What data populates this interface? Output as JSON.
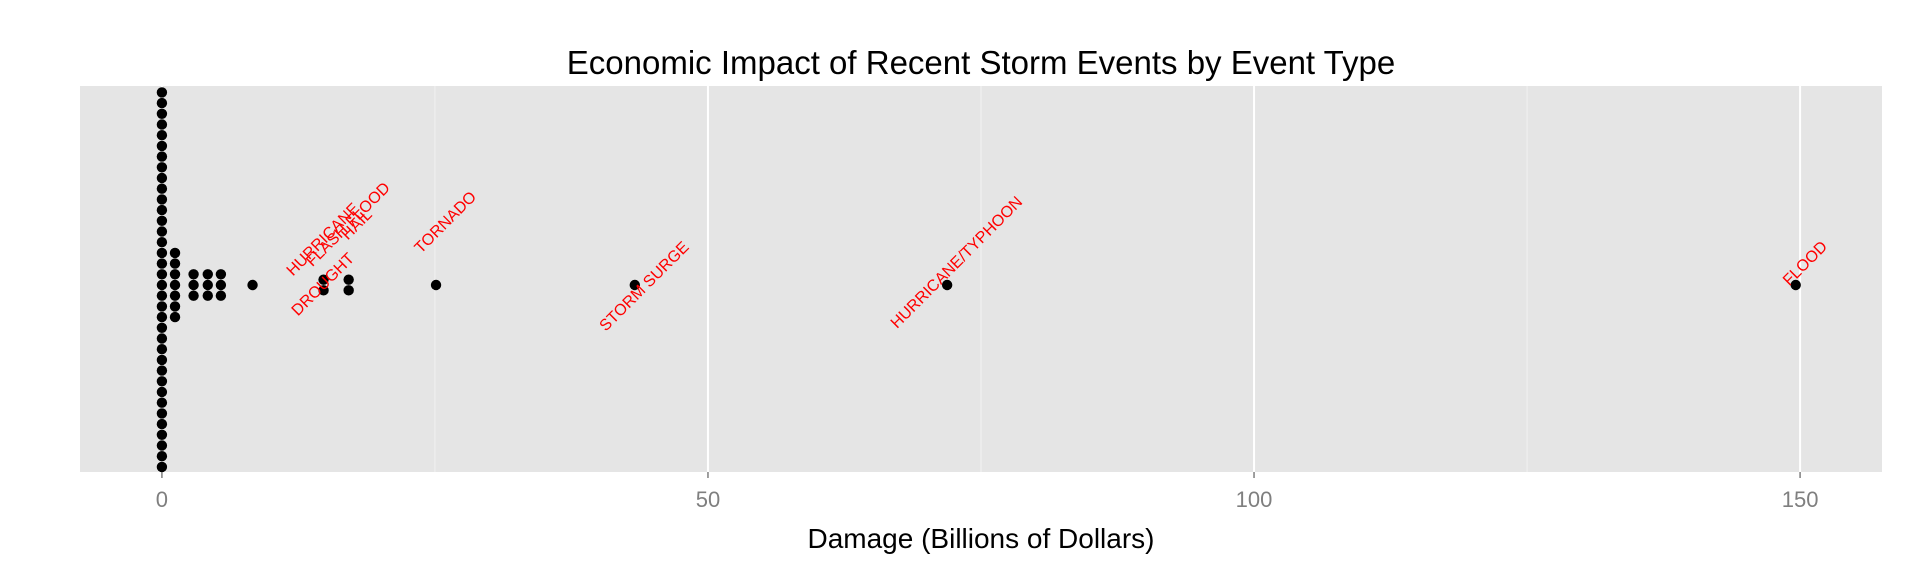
{
  "chart_data": {
    "type": "dotplot",
    "title": "Economic Impact of Recent Storm Events by Event Type",
    "xlabel": "Damage (Billions of Dollars)",
    "ylabel": "",
    "xlim": [
      -7.5,
      157.5
    ],
    "x_ticks": [
      0,
      50,
      100,
      150
    ],
    "x_tick_labels": [
      "0",
      "50",
      "100",
      "150"
    ],
    "grid": true,
    "colors": {
      "panel": "#e5e5e5",
      "grid": "#ffffff",
      "dots": "#000000",
      "annotations": "#ff0000",
      "ticks": "#7f7f7f",
      "text": "#000000"
    },
    "dot_bins": [
      {
        "x": 0.0,
        "count": 71
      },
      {
        "x": 1.2,
        "count": 7
      },
      {
        "x": 2.9,
        "count": 3
      },
      {
        "x": 4.2,
        "count": 3
      },
      {
        "x": 5.4,
        "count": 3
      },
      {
        "x": 8.3,
        "count": 1
      },
      {
        "x": 14.8,
        "count": 2
      },
      {
        "x": 17.1,
        "count": 2
      },
      {
        "x": 25.1,
        "count": 1
      },
      {
        "x": 43.3,
        "count": 1
      },
      {
        "x": 71.9,
        "count": 1
      },
      {
        "x": 149.6,
        "count": 1
      }
    ],
    "annotations": [
      {
        "label": "HURRICANE",
        "x": 14.8
      },
      {
        "label": "HAIL",
        "x": 16.8
      },
      {
        "label": "FLASH FLOOD",
        "x": 17.1
      },
      {
        "label": "DROUGHT",
        "x": 14.8
      },
      {
        "label": "TORNADO",
        "x": 25.1
      },
      {
        "label": "STORM SURGE",
        "x": 43.3
      },
      {
        "label": "HURRICANE/TYPHOON",
        "x": 71.9
      },
      {
        "label": "FLOOD",
        "x": 149.6
      }
    ]
  }
}
